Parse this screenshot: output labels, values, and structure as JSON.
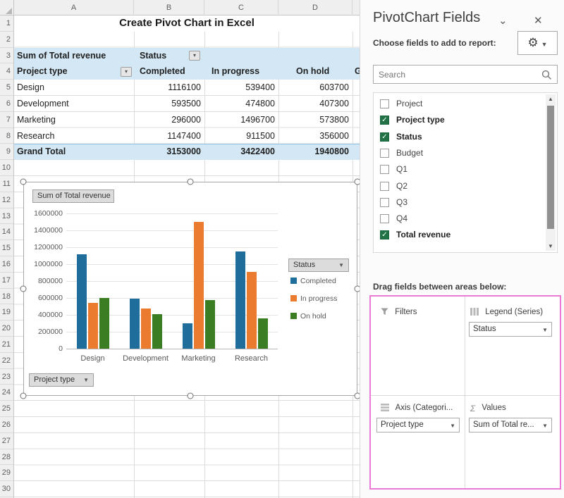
{
  "sheet": {
    "col_headers": [
      "A",
      "B",
      "C",
      "D"
    ],
    "row_numbers": [
      1,
      2,
      3,
      4,
      5,
      6,
      7,
      8,
      9,
      10,
      11,
      12,
      13,
      14,
      15,
      16,
      17,
      18,
      19,
      20,
      21,
      22,
      23,
      24,
      25,
      26,
      27,
      28,
      29,
      30
    ],
    "title": "Create Pivot Chart in Excel"
  },
  "pivot": {
    "measure_label": "Sum of Total revenue",
    "col_field_label": "Status",
    "row_field_label": "Project type",
    "col_headers": [
      "Completed",
      "In progress",
      "On hold"
    ],
    "next_col_partial": "G",
    "rows": [
      {
        "name": "Design",
        "values": [
          "1116100",
          "539400",
          "603700"
        ]
      },
      {
        "name": "Development",
        "values": [
          "593500",
          "474800",
          "407300"
        ]
      },
      {
        "name": "Marketing",
        "values": [
          "296000",
          "1496700",
          "573800"
        ]
      },
      {
        "name": "Research",
        "values": [
          "1147400",
          "911500",
          "356000"
        ]
      }
    ],
    "grand_total": {
      "name": "Grand Total",
      "values": [
        "3153000",
        "3422400",
        "1940800"
      ]
    }
  },
  "chart": {
    "measure_button": "Sum of Total revenue",
    "axis_button": "Project type",
    "legend_button": "Status",
    "dropdown_arrow": "▾"
  },
  "chart_data": {
    "type": "bar",
    "title": "Sum of Total revenue",
    "categories": [
      "Design",
      "Development",
      "Marketing",
      "Research"
    ],
    "series": [
      {
        "name": "Completed",
        "color": "#1F6D9A",
        "values": [
          1116100,
          593500,
          296000,
          1147400
        ]
      },
      {
        "name": "In progress",
        "color": "#EB7B2F",
        "values": [
          539400,
          474800,
          1496700,
          911500
        ]
      },
      {
        "name": "On hold",
        "color": "#3B7D23",
        "values": [
          603700,
          407300,
          573800,
          356000
        ]
      }
    ],
    "xlabel": "Project type",
    "ylabel": "",
    "ylim": [
      0,
      1600000
    ],
    "ytick_step": 200000,
    "grid": true,
    "legend_position": "right"
  },
  "panel": {
    "title": "PivotChart Fields",
    "choose_label": "Choose fields to add to report:",
    "search_placeholder": "Search",
    "fields": [
      {
        "label": "Project",
        "checked": false
      },
      {
        "label": "Project type",
        "checked": true
      },
      {
        "label": "Status",
        "checked": true
      },
      {
        "label": "Budget",
        "checked": false
      },
      {
        "label": "Q1",
        "checked": false
      },
      {
        "label": "Q2",
        "checked": false
      },
      {
        "label": "Q3",
        "checked": false
      },
      {
        "label": "Q4",
        "checked": false
      },
      {
        "label": "Total revenue",
        "checked": true
      }
    ],
    "drag_label": "Drag fields between areas below:",
    "areas": {
      "filters": {
        "label": "Filters",
        "items": []
      },
      "legend": {
        "label": "Legend (Series)",
        "items": [
          "Status"
        ]
      },
      "axis": {
        "label": "Axis (Categori...",
        "items": [
          "Project type"
        ]
      },
      "values": {
        "label": "Values",
        "items": [
          "Sum of Total re..."
        ]
      }
    },
    "colors": {
      "highlight_pink": "#EA7AD6",
      "check_green": "#217346"
    }
  }
}
